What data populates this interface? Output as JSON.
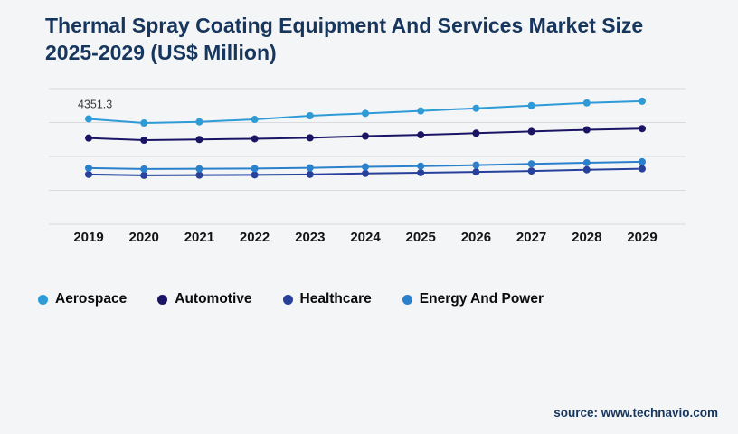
{
  "title": "Thermal Spray Coating Equipment And Services Market Size 2025-2029 (US$ Million)",
  "source": "source: www.technavio.com",
  "colors": {
    "background": "#f4f5f7",
    "title_text": "#17365d",
    "source_text": "#17365d",
    "gridline": "#d9d9de",
    "axis_label": "#141414"
  },
  "chart_data": {
    "type": "line",
    "title": "Thermal Spray Coating Equipment And Services Market Size 2025-2029 (US$ Million)",
    "x": [
      "2019",
      "2020",
      "2021",
      "2022",
      "2023",
      "2024",
      "2025",
      "2026",
      "2027",
      "2028",
      "2029"
    ],
    "xlabel": "",
    "ylabel": "US$ Million",
    "ylim": [
      0,
      5600
    ],
    "yticks": [
      0,
      1400,
      2800,
      4200,
      5600
    ],
    "grid": true,
    "legend_position": "bottom",
    "annotation": {
      "text": "4351.3",
      "series": "Aerospace",
      "x": "2019",
      "value": 4351.3
    },
    "series": [
      {
        "name": "Aerospace",
        "color": "#2e9bd6",
        "values": [
          4351.3,
          4180,
          4230,
          4330,
          4480,
          4580,
          4680,
          4790,
          4900,
          5010,
          5080
        ]
      },
      {
        "name": "Automotive",
        "color": "#1a1464",
        "values": [
          3560,
          3470,
          3500,
          3530,
          3570,
          3640,
          3690,
          3760,
          3830,
          3900,
          3950
        ]
      },
      {
        "name": "Healthcare",
        "color": "#27409b",
        "values": [
          2060,
          2020,
          2030,
          2040,
          2060,
          2100,
          2130,
          2160,
          2200,
          2250,
          2290
        ]
      },
      {
        "name": "Energy And Power",
        "color": "#2b80cc",
        "values": [
          2320,
          2280,
          2290,
          2300,
          2330,
          2370,
          2400,
          2440,
          2490,
          2540,
          2580
        ]
      }
    ]
  }
}
